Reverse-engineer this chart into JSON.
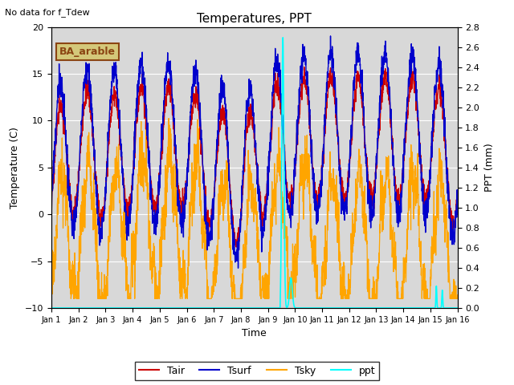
{
  "title": "Temperatures, PPT",
  "no_data_text": "No data for f_Tdew",
  "legend_label": "BA_arable",
  "xlabel": "Time",
  "ylabel_left": "Temperature (C)",
  "ylabel_right": "PPT (mm)",
  "ylim_left": [
    -10,
    20
  ],
  "ylim_right": [
    0.0,
    2.8
  ],
  "xtick_labels": [
    "Jan 1",
    "Jan 2",
    "Jan 3",
    "Jan 4",
    "Jan 5",
    "Jan 6",
    "Jan 7",
    "Jan 8",
    "Jan 9",
    "Jan 10",
    "Jan 11",
    "Jan 12",
    "Jan 13",
    "Jan 14",
    "Jan 15",
    "Jan 16"
  ],
  "background_color": "#d8d8d8",
  "line_colors": {
    "Tair": "#cc0000",
    "Tsurf": "#0000cc",
    "Tsky": "#ffa500",
    "ppt": "#00ffff"
  },
  "legend_box_facecolor": "#d4c87a",
  "legend_box_edgecolor": "#8b4513",
  "figsize": [
    6.4,
    4.8
  ],
  "dpi": 100
}
